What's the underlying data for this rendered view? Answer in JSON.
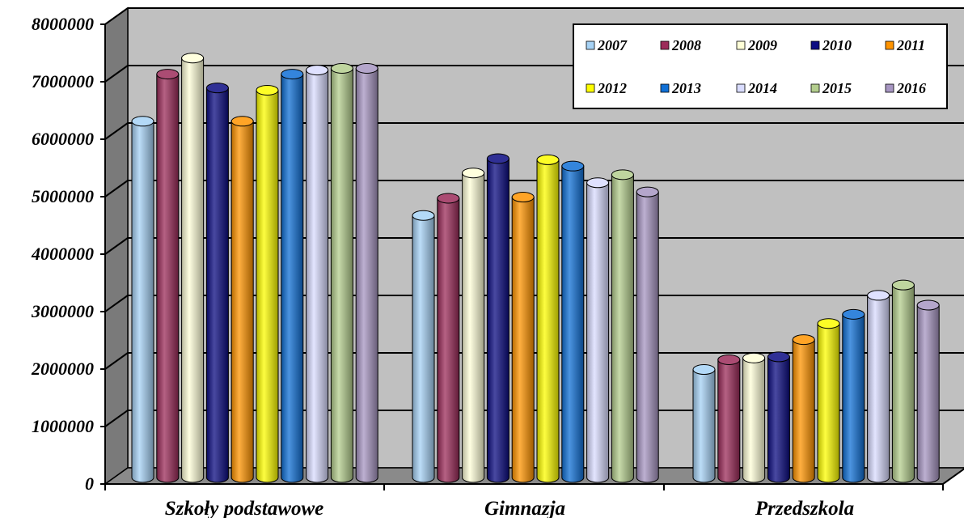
{
  "chart_data": {
    "type": "bar",
    "title": "",
    "xlabel": "",
    "ylabel": "",
    "ylim": [
      0,
      8000000
    ],
    "yticks": [
      "0",
      "1000000",
      "2000000",
      "3000000",
      "4000000",
      "5000000",
      "6000000",
      "7000000",
      "8000000"
    ],
    "grid": true,
    "legend_position": "top-right",
    "categories": [
      "Szkoły podstawowe",
      "Gimnazja",
      "Przedszkola"
    ],
    "series": [
      {
        "name": "2007",
        "color": "#a6d2f5",
        "values": [
          6200000,
          4560000,
          1880000
        ]
      },
      {
        "name": "2008",
        "color": "#9c2c5a",
        "values": [
          7020000,
          4860000,
          2050000
        ]
      },
      {
        "name": "2009",
        "color": "#ffffd8",
        "values": [
          7300000,
          5300000,
          2080000
        ]
      },
      {
        "name": "2010",
        "color": "#0c0c82",
        "values": [
          6780000,
          5550000,
          2100000
        ]
      },
      {
        "name": "2011",
        "color": "#ff9400",
        "values": [
          6200000,
          4880000,
          2400000
        ]
      },
      {
        "name": "2012",
        "color": "#fdfd00",
        "values": [
          6740000,
          5530000,
          2680000
        ]
      },
      {
        "name": "2013",
        "color": "#1070d6",
        "values": [
          7020000,
          5420000,
          2840000
        ]
      },
      {
        "name": "2014",
        "color": "#d9dcff",
        "values": [
          7090000,
          5130000,
          3170000
        ]
      },
      {
        "name": "2015",
        "color": "#b4ce8e",
        "values": [
          7120000,
          5270000,
          3350000
        ]
      },
      {
        "name": "2016",
        "color": "#a796c2",
        "values": [
          7120000,
          4970000,
          3000000
        ]
      }
    ]
  }
}
